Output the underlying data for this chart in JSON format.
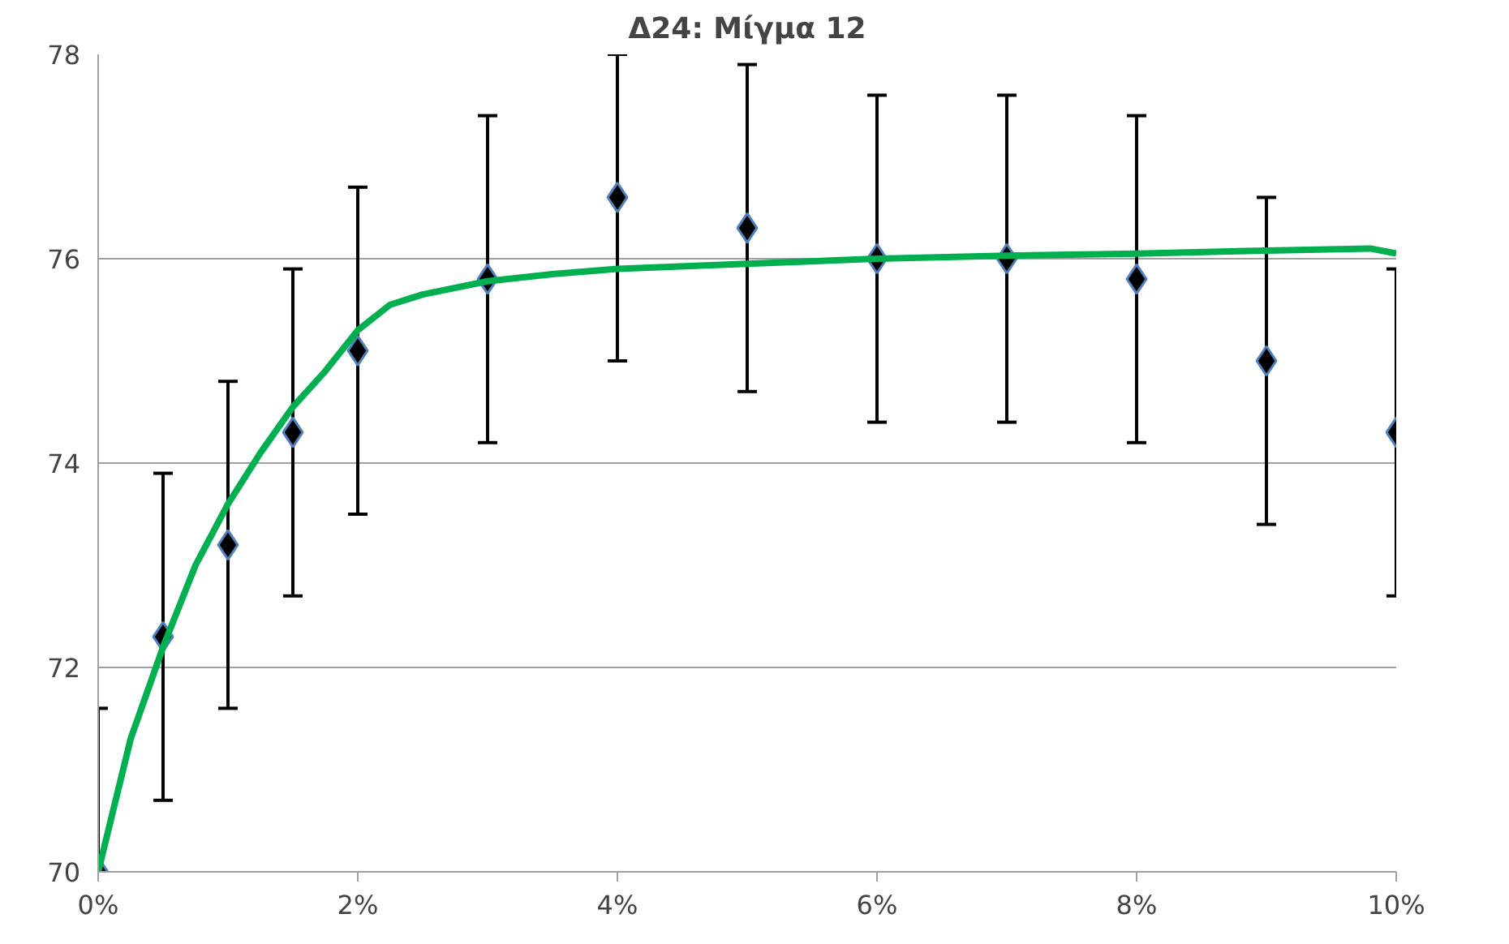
{
  "chart_data": {
    "type": "scatter",
    "title": "Δ24: Μίγμα 12",
    "xlim": [
      0,
      10
    ],
    "ylim": [
      70,
      78
    ],
    "xticks": [
      {
        "value": 0,
        "label": "0%"
      },
      {
        "value": 2,
        "label": "2%"
      },
      {
        "value": 4,
        "label": "4%"
      },
      {
        "value": 6,
        "label": "6%"
      },
      {
        "value": 8,
        "label": "8%"
      },
      {
        "value": 10,
        "label": "10%"
      }
    ],
    "yticks": [
      70,
      72,
      74,
      76,
      78
    ],
    "grid": "y",
    "series": [
      {
        "color": "#000000",
        "marker": "diamond",
        "x": [
          0,
          0.5,
          1,
          1.5,
          2,
          3,
          4,
          5,
          6,
          7,
          8,
          9,
          10
        ],
        "values": [
          70,
          72.3,
          73.2,
          74.3,
          75.1,
          75.8,
          76.6,
          76.3,
          76.0,
          76.0,
          75.8,
          75.0,
          74.3
        ],
        "errors": [
          [
            70,
            71.6
          ],
          1.6,
          1.6,
          1.6,
          1.6,
          1.6,
          [
            75.0,
            78.0
          ],
          1.6,
          1.6,
          1.6,
          1.6,
          1.6,
          1.6
        ]
      },
      {
        "type": "line",
        "color": "#00b050",
        "line_style": "solid",
        "x": [
          0,
          0.25,
          0.5,
          0.75,
          1,
          1.25,
          1.5,
          1.75,
          2,
          2.25,
          2.5,
          3,
          3.5,
          4,
          5,
          6,
          7,
          8,
          9,
          9.8,
          10
        ],
        "values": [
          70,
          71.3,
          72.2,
          73.0,
          73.6,
          74.1,
          74.55,
          74.9,
          75.3,
          75.55,
          75.65,
          75.78,
          75.85,
          75.9,
          75.95,
          76.0,
          76.03,
          76.05,
          76.08,
          76.1,
          76.05
        ]
      }
    ]
  }
}
